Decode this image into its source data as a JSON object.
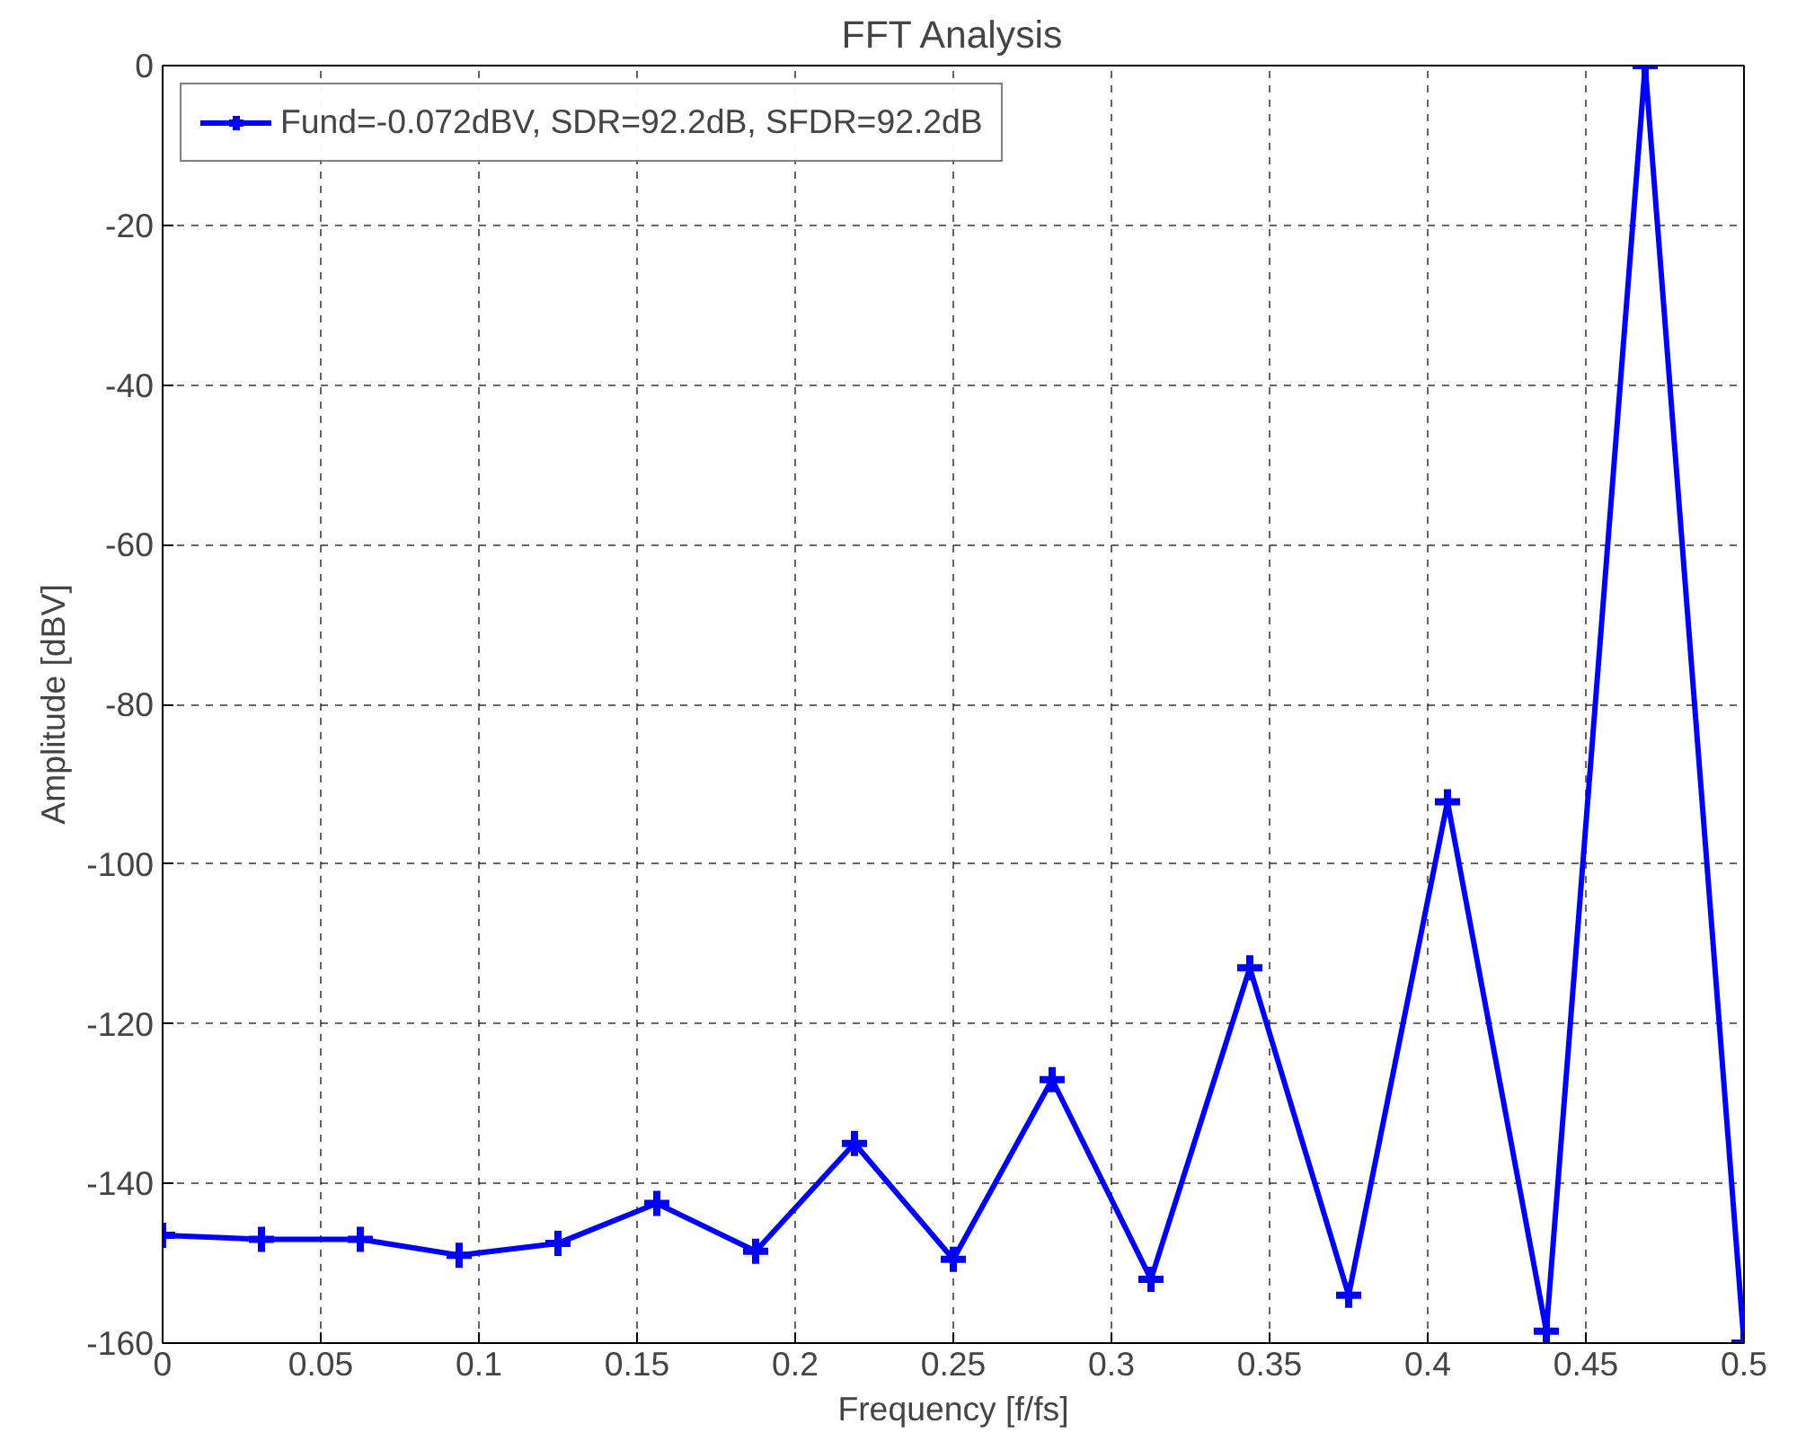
{
  "chart_data": {
    "type": "line",
    "title": "FFT Analysis",
    "xlabel": "Frequency [f/fs]",
    "ylabel": "Amplitude [dBV]",
    "x": [
      0,
      0.03125,
      0.0625,
      0.09375,
      0.125,
      0.15625,
      0.1875,
      0.21875,
      0.25,
      0.28125,
      0.3125,
      0.34375,
      0.375,
      0.40625,
      0.4375,
      0.46875,
      0.5
    ],
    "series": [
      {
        "name": "Fund=-0.072dBV, SDR=92.2dB, SFDR=92.2dB",
        "color": "#0000ff",
        "values": [
          -146.5,
          -147,
          -147,
          -149,
          -147.5,
          -142.5,
          -148.5,
          -135,
          -149.5,
          -127,
          -152,
          -113,
          -154,
          -92.2,
          -158.5,
          0,
          -160
        ]
      }
    ],
    "xlim": [
      0,
      0.5
    ],
    "ylim": [
      -160,
      0
    ],
    "xticks": [
      0,
      0.05,
      0.1,
      0.15,
      0.2,
      0.25,
      0.3,
      0.35,
      0.4,
      0.45,
      0.5
    ],
    "yticks": [
      -160,
      -140,
      -120,
      -100,
      -80,
      -60,
      -40,
      -20,
      0
    ],
    "grid": true,
    "legend": "top left",
    "marker": "cross",
    "line_style": "solid"
  }
}
